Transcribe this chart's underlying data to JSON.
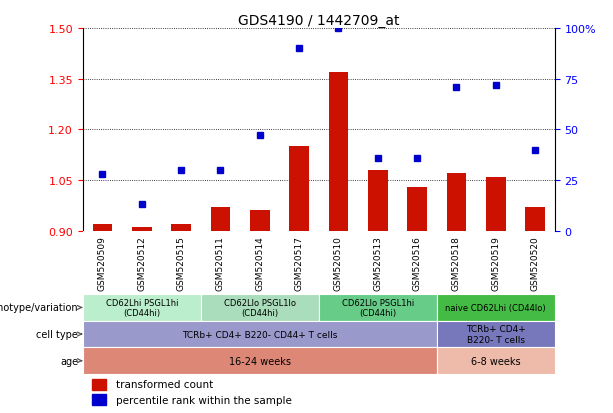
{
  "title": "GDS4190 / 1442709_at",
  "samples": [
    "GSM520509",
    "GSM520512",
    "GSM520515",
    "GSM520511",
    "GSM520514",
    "GSM520517",
    "GSM520510",
    "GSM520513",
    "GSM520516",
    "GSM520518",
    "GSM520519",
    "GSM520520"
  ],
  "transformed_count": [
    0.92,
    0.91,
    0.92,
    0.97,
    0.96,
    1.15,
    1.37,
    1.08,
    1.03,
    1.07,
    1.06,
    0.97
  ],
  "percentile_rank": [
    28,
    13,
    30,
    30,
    47,
    90,
    100,
    36,
    36,
    71,
    72,
    40
  ],
  "ylim_left": [
    0.9,
    1.5
  ],
  "ylim_right": [
    0,
    100
  ],
  "yticks_left": [
    0.9,
    1.05,
    1.2,
    1.35,
    1.5
  ],
  "yticks_right": [
    0,
    25,
    50,
    75,
    100
  ],
  "bar_color": "#cc1100",
  "dot_color": "#0000cc",
  "bar_bottom": 0.9,
  "genotype_groups": [
    {
      "label": "CD62Lhi PSGL1hi\n(CD44hi)",
      "start": 0,
      "end": 3,
      "color": "#bbeecc"
    },
    {
      "label": "CD62Llo PSGL1lo\n(CD44hi)",
      "start": 3,
      "end": 6,
      "color": "#aaddbb"
    },
    {
      "label": "CD62Llo PSGL1hi\n(CD44hi)",
      "start": 6,
      "end": 9,
      "color": "#66cc88"
    },
    {
      "label": "naive CD62Lhi (CD44lo)",
      "start": 9,
      "end": 12,
      "color": "#44bb44"
    }
  ],
  "cell_type_groups": [
    {
      "label": "TCRb+ CD4+ B220- CD44+ T cells",
      "start": 0,
      "end": 9,
      "color": "#9999cc"
    },
    {
      "label": "TCRb+ CD4+\nB220- T cells",
      "start": 9,
      "end": 12,
      "color": "#7777bb"
    }
  ],
  "age_groups": [
    {
      "label": "16-24 weeks",
      "start": 0,
      "end": 9,
      "color": "#dd8877"
    },
    {
      "label": "6-8 weeks",
      "start": 9,
      "end": 12,
      "color": "#eebbaa"
    }
  ],
  "row_labels": [
    "genotype/variation",
    "cell type",
    "age"
  ],
  "legend_red": "transformed count",
  "legend_blue": "percentile rank within the sample"
}
